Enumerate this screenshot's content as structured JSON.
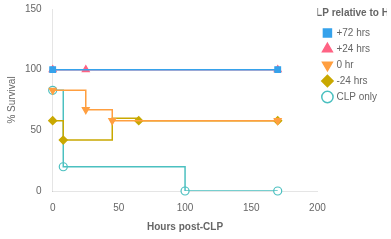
{
  "chart_data": {
    "type": "line",
    "title": "CLP relative to HS",
    "xlabel": "Hours post-CLP",
    "ylabel": "% Survival",
    "xlim": [
      0,
      200
    ],
    "xticks": [
      0,
      50,
      100,
      150,
      200
    ],
    "ylim": [
      0,
      150
    ],
    "yticks": [
      0,
      50,
      100,
      150
    ],
    "grid": false,
    "legend": "upper right",
    "series": [
      {
        "name": "+72 hrs",
        "x": [
          0,
          170
        ],
        "values": [
          100,
          100
        ],
        "marker_x": [
          0,
          170
        ],
        "marker_values": [
          100,
          100
        ],
        "marker": "square"
      },
      {
        "name": "+24 hrs",
        "x": [
          0,
          25,
          25,
          170
        ],
        "values": [
          100,
          100,
          100,
          100
        ],
        "marker_x": [
          0,
          25,
          170
        ],
        "marker_values": [
          100,
          100,
          100
        ],
        "marker": "triangle-up"
      },
      {
        "name": "0 hr",
        "x": [
          0,
          25,
          25,
          45,
          45,
          170
        ],
        "values": [
          83,
          83,
          67,
          67,
          58,
          58
        ],
        "marker_x": [
          0,
          25,
          45,
          170
        ],
        "marker_values": [
          83,
          67,
          58,
          58
        ],
        "marker": "triangle-down"
      },
      {
        "name": "-24 hrs",
        "x": [
          0,
          8,
          8,
          45,
          45,
          65,
          65,
          170
        ],
        "values": [
          58,
          58,
          42,
          42,
          60,
          60,
          58,
          58
        ],
        "marker_x": [
          0,
          8,
          65,
          170
        ],
        "marker_values": [
          58,
          42,
          58,
          58
        ],
        "marker": "diamond"
      },
      {
        "name": "CLP only",
        "x": [
          0,
          8,
          8,
          100,
          100,
          170
        ],
        "values": [
          83,
          83,
          20,
          20,
          0,
          0
        ],
        "marker_x": [
          0,
          8,
          100,
          170
        ],
        "marker_values": [
          83,
          20,
          0,
          0
        ],
        "marker": "circle-open"
      }
    ]
  }
}
